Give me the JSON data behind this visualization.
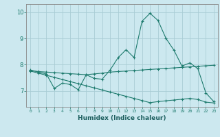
{
  "xlabel": "Humidex (Indice chaleur)",
  "background_color": "#cce8ef",
  "grid_color": "#aacdd5",
  "line_color": "#1e7b6e",
  "xlim": [
    -0.5,
    23.5
  ],
  "ylim": [
    6.4,
    10.3
  ],
  "yticks": [
    7,
    8,
    9,
    10
  ],
  "xticks": [
    0,
    1,
    2,
    3,
    4,
    5,
    6,
    7,
    8,
    9,
    10,
    11,
    12,
    13,
    14,
    15,
    16,
    17,
    18,
    19,
    20,
    21,
    22,
    23
  ],
  "series1_x": [
    0,
    1,
    2,
    3,
    4,
    5,
    6,
    7,
    8,
    9,
    10,
    11,
    12,
    13,
    14,
    15,
    16,
    17,
    18,
    19,
    20,
    21,
    22,
    23
  ],
  "series1_y": [
    7.8,
    7.72,
    7.65,
    7.1,
    7.3,
    7.25,
    7.05,
    7.62,
    7.48,
    7.45,
    7.8,
    8.27,
    8.57,
    8.27,
    9.65,
    9.95,
    9.68,
    9.0,
    8.55,
    7.95,
    8.07,
    7.85,
    6.93,
    6.6
  ],
  "series2_x": [
    0,
    1,
    2,
    3,
    4,
    5,
    6,
    7,
    8,
    9,
    10,
    11,
    12,
    13,
    14,
    15,
    16,
    17,
    18,
    19,
    20,
    21,
    22,
    23
  ],
  "series2_y": [
    7.78,
    7.74,
    7.72,
    7.7,
    7.68,
    7.66,
    7.64,
    7.62,
    7.65,
    7.68,
    7.72,
    7.74,
    7.76,
    7.78,
    7.8,
    7.82,
    7.84,
    7.86,
    7.88,
    7.9,
    7.92,
    7.94,
    7.96,
    7.98
  ],
  "series3_x": [
    0,
    1,
    2,
    3,
    4,
    5,
    6,
    7,
    8,
    9,
    10,
    11,
    12,
    13,
    14,
    15,
    16,
    17,
    18,
    19,
    20,
    21,
    22,
    23
  ],
  "series3_y": [
    7.76,
    7.68,
    7.6,
    7.52,
    7.44,
    7.36,
    7.28,
    7.2,
    7.12,
    7.04,
    6.96,
    6.88,
    6.8,
    6.72,
    6.64,
    6.56,
    6.6,
    6.63,
    6.66,
    6.69,
    6.72,
    6.68,
    6.58,
    6.55
  ]
}
